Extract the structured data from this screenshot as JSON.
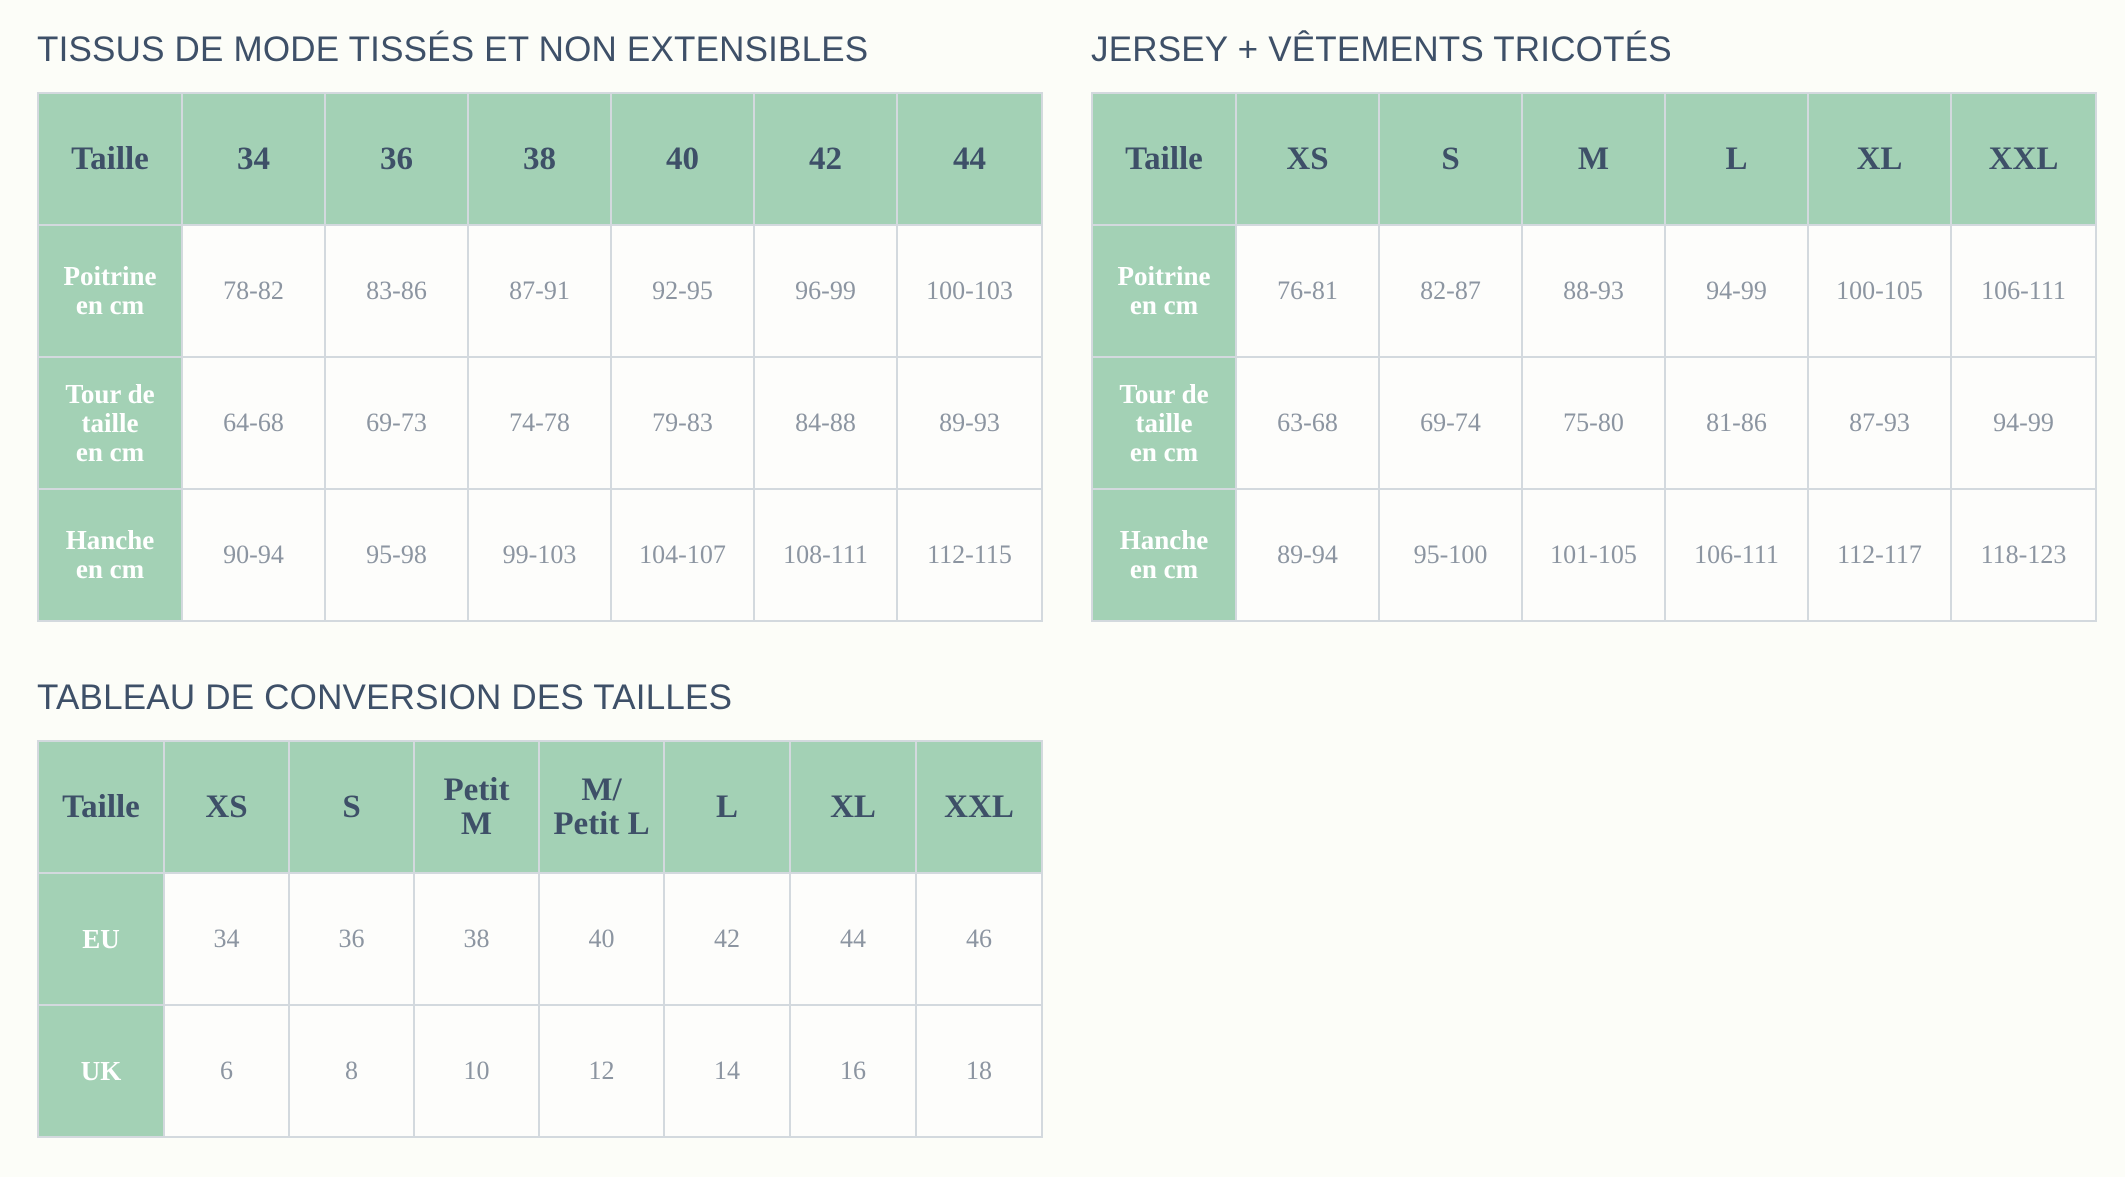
{
  "colors": {
    "background": "#fcfdf8",
    "header_green": "#a3d1b5",
    "title_navy": "#3e5068",
    "cell_text_gray": "#8c95a1",
    "grid_border": "#d3d9de"
  },
  "woven": {
    "title": "TISSUS DE MODE TISSÉS ET NON EXTENSIBLES",
    "corner": "Taille",
    "columns": [
      "34",
      "36",
      "38",
      "40",
      "42",
      "44"
    ],
    "rows": [
      {
        "label": "Poitrine\nen cm",
        "values": [
          "78-82",
          "83-86",
          "87-91",
          "92-95",
          "96-99",
          "100-103"
        ]
      },
      {
        "label": "Tour de\ntaille\nen cm",
        "values": [
          "64-68",
          "69-73",
          "74-78",
          "79-83",
          "84-88",
          "89-93"
        ]
      },
      {
        "label": "Hanche\nen cm",
        "values": [
          "90-94",
          "95-98",
          "99-103",
          "104-107",
          "108-111",
          "112-115"
        ]
      }
    ]
  },
  "jersey": {
    "title": "JERSEY + VÊTEMENTS TRICOTÉS",
    "corner": "Taille",
    "columns": [
      "XS",
      "S",
      "M",
      "L",
      "XL",
      "XXL"
    ],
    "rows": [
      {
        "label": "Poitrine\nen cm",
        "values": [
          "76-81",
          "82-87",
          "88-93",
          "94-99",
          "100-105",
          "106-111"
        ]
      },
      {
        "label": "Tour de\ntaille\nen cm",
        "values": [
          "63-68",
          "69-74",
          "75-80",
          "81-86",
          "87-93",
          "94-99"
        ]
      },
      {
        "label": "Hanche\nen cm",
        "values": [
          "89-94",
          "95-100",
          "101-105",
          "106-111",
          "112-117",
          "118-123"
        ]
      }
    ]
  },
  "conversion": {
    "title": "TABLEAU DE CONVERSION DES TAILLES",
    "corner": "Taille",
    "columns": [
      "XS",
      "S",
      "Petit\nM",
      "M/\nPetit L",
      "L",
      "XL",
      "XXL"
    ],
    "rows": [
      {
        "label": "EU",
        "values": [
          "34",
          "36",
          "38",
          "40",
          "42",
          "44",
          "46"
        ]
      },
      {
        "label": "UK",
        "values": [
          "6",
          "8",
          "10",
          "12",
          "14",
          "16",
          "18"
        ]
      }
    ]
  }
}
